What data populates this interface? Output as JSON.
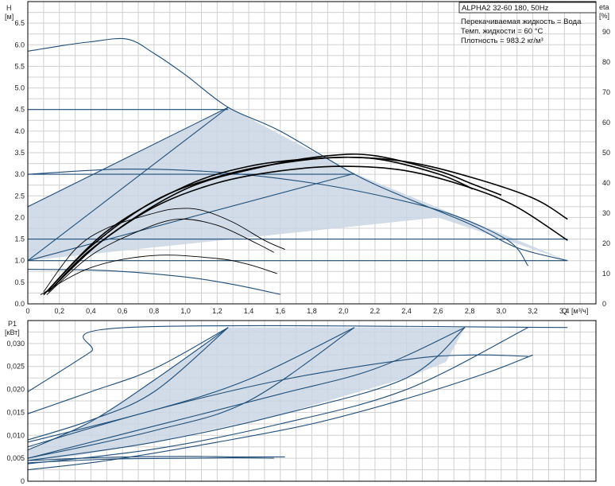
{
  "chart_data": [
    {
      "type": "line",
      "title": "ALPHA2 32-60 180, 50Hz",
      "xlabel": "Q",
      "xunit": "[м³/ч]",
      "ylabel": "H",
      "yunit": "[м]",
      "y2label": "eta",
      "y2unit": "[%]",
      "xlim": [
        0,
        3.6
      ],
      "ylim": [
        0,
        7.0
      ],
      "y2lim": [
        0,
        100
      ],
      "x_ticks": [
        "0",
        "0,2",
        "0,4",
        "0,6",
        "0,8",
        "1,0",
        "1,2",
        "1,4",
        "1,6",
        "1,8",
        "2,0",
        "2,2",
        "2,4",
        "2,6",
        "2,8",
        "3,0",
        "3,2",
        "3,4"
      ],
      "y_ticks": [
        "0.0",
        "0.5",
        "1.0",
        "1.5",
        "2.0",
        "2.5",
        "3.0",
        "3.5",
        "4.0",
        "4.5",
        "5.0",
        "5.5",
        "6.0",
        "6.5"
      ],
      "y2_ticks": [
        "0",
        "10",
        "20",
        "30",
        "40",
        "50",
        "60",
        "70",
        "80",
        "90"
      ],
      "grid": true,
      "annotations": [
        "Перекачиваемая жидкость = Вода",
        "Темп. жидкости = 60 °C",
        "Плотность = 983.2 кг/м³"
      ],
      "shaded_region": {
        "name": "",
        "points": [
          [
            0,
            1.0
          ],
          [
            0,
            2.25
          ],
          [
            1.27,
            4.55
          ],
          [
            2.07,
            3.02
          ],
          [
            3.42,
            1.0
          ],
          [
            2.6,
            2.0
          ],
          [
            0,
            1.0
          ]
        ]
      },
      "series": [
        {
          "kind": "head",
          "points": [
            [
              0,
              5.85
            ],
            [
              0.2,
              5.97
            ],
            [
              0.4,
              6.07
            ],
            [
              0.63,
              6.13
            ],
            [
              0.8,
              5.8
            ],
            [
              1.0,
              5.3
            ],
            [
              1.27,
              4.55
            ],
            [
              1.6,
              4.0
            ],
            [
              2.07,
              3.0
            ],
            [
              2.4,
              2.45
            ],
            [
              2.8,
              1.85
            ],
            [
              3.1,
              1.3
            ],
            [
              3.42,
              1.0
            ]
          ]
        },
        {
          "kind": "head",
          "points": [
            [
              0,
              4.5
            ],
            [
              1.27,
              4.5
            ]
          ]
        },
        {
          "kind": "head",
          "points": [
            [
              0,
              3.0
            ],
            [
              2.07,
              3.0
            ]
          ]
        },
        {
          "kind": "head",
          "points": [
            [
              0,
              1.5
            ],
            [
              2.6,
              1.5
            ],
            [
              3.42,
              1.5
            ]
          ]
        },
        {
          "kind": "head",
          "points": [
            [
              0,
              1.0
            ],
            [
              1.27,
              4.55
            ]
          ]
        },
        {
          "kind": "head",
          "points": [
            [
              0,
              1.0
            ],
            [
              2.07,
              3.02
            ]
          ]
        },
        {
          "kind": "head",
          "points": [
            [
              0,
              1.0
            ],
            [
              3.42,
              1.0
            ]
          ]
        },
        {
          "kind": "head",
          "points": [
            [
              0,
              2.25
            ],
            [
              1.27,
              4.55
            ]
          ]
        },
        {
          "kind": "head",
          "points": [
            [
              0,
              3.0
            ],
            [
              0.6,
              3.12
            ],
            [
              1.2,
              3.05
            ],
            [
              1.8,
              2.8
            ],
            [
              2.3,
              2.45
            ],
            [
              2.7,
              2.05
            ],
            [
              3.05,
              1.45
            ],
            [
              3.17,
              0.88
            ]
          ]
        },
        {
          "kind": "head",
          "points": [
            [
              0,
              0.8
            ],
            [
              0.5,
              0.77
            ],
            [
              1.0,
              0.62
            ],
            [
              1.3,
              0.45
            ],
            [
              1.6,
              0.22
            ]
          ]
        },
        {
          "kind": "eta",
          "points": [
            [
              0.1,
              4
            ],
            [
              0.3,
              18
            ],
            [
              0.5,
              25
            ],
            [
              0.8,
              30
            ],
            [
              0.95,
              31.5
            ],
            [
              1.1,
              31
            ],
            [
              1.3,
              27
            ],
            [
              1.5,
              21
            ],
            [
              1.63,
              18
            ]
          ]
        },
        {
          "kind": "eta",
          "points": [
            [
              0.12,
              3
            ],
            [
              0.4,
              16
            ],
            [
              0.7,
              24
            ],
            [
              0.95,
              28
            ],
            [
              1.2,
              26
            ],
            [
              1.45,
              20
            ],
            [
              1.56,
              17
            ]
          ]
        },
        {
          "kind": "eta",
          "points": [
            [
              0.15,
              5
            ],
            [
              0.4,
              18
            ],
            [
              0.8,
              32
            ],
            [
              1.2,
              40
            ],
            [
              1.6,
              44
            ],
            [
              2.0,
              45.5
            ],
            [
              2.4,
              44
            ],
            [
              2.8,
              38.5
            ],
            [
              3.1,
              32
            ],
            [
              3.42,
              21
            ]
          ]
        },
        {
          "kind": "eta",
          "points": [
            [
              0.12,
              4
            ],
            [
              0.4,
              19
            ],
            [
              0.8,
              34
            ],
            [
              1.2,
              42
            ],
            [
              1.6,
              46.5
            ],
            [
              2.0,
              48.5
            ],
            [
              2.4,
              47
            ],
            [
              2.8,
              42
            ],
            [
              3.2,
              35
            ],
            [
              3.42,
              28
            ]
          ]
        },
        {
          "kind": "eta",
          "points": [
            [
              0.13,
              4
            ],
            [
              0.5,
              22
            ],
            [
              1.0,
              38
            ],
            [
              1.5,
              45.5
            ],
            [
              1.9,
              49
            ],
            [
              2.2,
              49
            ],
            [
              2.6,
              44
            ],
            [
              2.8,
              40
            ],
            [
              3.0,
              36
            ]
          ]
        },
        {
          "kind": "eta",
          "points": [
            [
              0.1,
              3
            ],
            [
              0.5,
              24
            ],
            [
              1.0,
              39
            ],
            [
              1.4,
              45.5
            ],
            [
              1.8,
              48
            ],
            [
              2.2,
              48
            ],
            [
              2.6,
              43
            ],
            [
              2.82,
              38
            ]
          ]
        },
        {
          "kind": "eta",
          "points": [
            [
              0.08,
              3
            ],
            [
              0.4,
              12
            ],
            [
              0.8,
              16
            ],
            [
              1.2,
              15
            ],
            [
              1.4,
              13
            ],
            [
              1.58,
              10
            ]
          ]
        }
      ]
    },
    {
      "type": "line",
      "title": "",
      "xlabel": "",
      "ylabel": "P1",
      "yunit": "[кВт]",
      "xlim": [
        0,
        3.6
      ],
      "ylim": [
        0,
        0.035
      ],
      "y_ticks": [
        "0",
        "0,005",
        "0,010",
        "0,015",
        "0,020",
        "0,025",
        "0,030"
      ],
      "grid": true,
      "shaded_region": {
        "name": "",
        "points": [
          [
            0,
            0.0045
          ],
          [
            0.3,
            0.0055
          ],
          [
            0.8,
            0.0085
          ],
          [
            1.6,
            0.0145
          ],
          [
            2.4,
            0.0225
          ],
          [
            2.65,
            0.026
          ],
          [
            2.77,
            0.0335
          ],
          [
            1.27,
            0.0335
          ],
          [
            0.8,
            0.022
          ],
          [
            0.4,
            0.013
          ],
          [
            0,
            0.0068
          ]
        ]
      },
      "series": [
        {
          "points": [
            [
              0,
              0.0195
            ],
            [
              0.2,
              0.0238
            ],
            [
              0.4,
              0.0282
            ],
            [
              0.63,
              0.0335
            ],
            [
              3.42,
              0.0335
            ]
          ]
        },
        {
          "points": [
            [
              0,
              0.0147
            ],
            [
              0.4,
              0.0195
            ],
            [
              0.8,
              0.0245
            ],
            [
              1.27,
              0.0335
            ]
          ]
        },
        {
          "points": [
            [
              0,
              0.009
            ],
            [
              0.4,
              0.0133
            ],
            [
              0.8,
              0.0195
            ],
            [
              1.27,
              0.0335
            ]
          ]
        },
        {
          "points": [
            [
              0,
              0.0068
            ],
            [
              0.4,
              0.013
            ],
            [
              0.8,
              0.022
            ],
            [
              1.27,
              0.0335
            ]
          ]
        },
        {
          "points": [
            [
              0,
              0.0085
            ],
            [
              0.8,
              0.0155
            ],
            [
              1.4,
              0.0222
            ],
            [
              2.07,
              0.0335
            ]
          ]
        },
        {
          "points": [
            [
              0,
              0.005
            ],
            [
              0.8,
              0.011
            ],
            [
              1.4,
              0.0175
            ],
            [
              2.07,
              0.0335
            ]
          ]
        },
        {
          "points": [
            [
              0,
              0.005
            ],
            [
              0.8,
              0.012
            ],
            [
              1.6,
              0.019
            ],
            [
              2.2,
              0.0245
            ],
            [
              2.77,
              0.0335
            ]
          ]
        },
        {
          "points": [
            [
              0,
              0.0045
            ],
            [
              0.8,
              0.0085
            ],
            [
              1.6,
              0.0145
            ],
            [
              2.4,
              0.0225
            ],
            [
              2.77,
              0.0335
            ]
          ]
        },
        {
          "points": [
            [
              0,
              0.0038
            ],
            [
              0.8,
              0.007
            ],
            [
              1.6,
              0.0125
            ],
            [
              2.4,
              0.02
            ],
            [
              3.17,
              0.0335
            ]
          ]
        },
        {
          "points": [
            [
              0,
              0.0025
            ],
            [
              0.5,
              0.0045
            ],
            [
              1.2,
              0.0085
            ],
            [
              1.8,
              0.0125
            ],
            [
              2.4,
              0.018
            ],
            [
              2.9,
              0.0235
            ],
            [
              3.2,
              0.0275
            ]
          ]
        },
        {
          "points": [
            [
              0,
              0.0075
            ],
            [
              0.8,
              0.0155
            ],
            [
              1.6,
              0.022
            ],
            [
              2.4,
              0.0265
            ],
            [
              2.8,
              0.0275
            ],
            [
              3.17,
              0.0272
            ]
          ]
        },
        {
          "points": [
            [
              0,
              0.0045
            ],
            [
              0.5,
              0.0052
            ],
            [
              1.0,
              0.0054
            ],
            [
              1.3,
              0.0053
            ],
            [
              1.63,
              0.0053
            ]
          ]
        },
        {
          "points": [
            [
              0,
              0.004
            ],
            [
              0.5,
              0.0048
            ],
            [
              1.0,
              0.005
            ],
            [
              1.3,
              0.0051
            ],
            [
              1.56,
              0.005
            ]
          ]
        }
      ]
    }
  ]
}
